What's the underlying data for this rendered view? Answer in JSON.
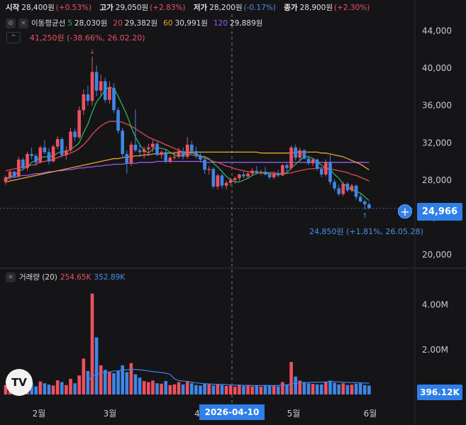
{
  "ohlc": {
    "open_label": "시작",
    "open": "28,400원",
    "open_chg": "(+0.53%)",
    "high_label": "고가",
    "high": "29,050원",
    "high_chg": "(+2.83%)",
    "low_label": "저가",
    "low": "28,200원",
    "low_chg": "(-0.17%)",
    "close_label": "종가",
    "close": "28,900원",
    "close_chg": "(+2.30%)"
  },
  "ma_legend": {
    "title": "이동평균선",
    "items": [
      {
        "period": "5",
        "value": "28,030원",
        "color": "#2bb35a"
      },
      {
        "period": "20",
        "value": "29,382원",
        "color": "#e8484e"
      },
      {
        "period": "60",
        "value": "30,991원",
        "color": "#f0a030"
      },
      {
        "period": "120",
        "value": "29,889원",
        "color": "#9b5cf0"
      }
    ]
  },
  "annotations": {
    "high": "41,250원 (-38.66%, 26.02.20)",
    "low": "24,850원 (+1.81%, 26.05.28)"
  },
  "current_price": "24,966",
  "volume_legend": {
    "title": "거래량 (20)",
    "v1": "254.65K",
    "v2": "352.89K"
  },
  "current_volume": "396.12K",
  "crosshair_date": "2026-04-10",
  "logo_text": "TV",
  "colors": {
    "up": "#ef5060",
    "down": "#3f86e6",
    "bg": "#151518"
  },
  "chart_data": {
    "type": "candlestick",
    "price_axis": {
      "ticks": [
        "20,000",
        "24,000",
        "28,000",
        "32,000",
        "36,000",
        "40,000",
        "44,000"
      ],
      "range": [
        19000,
        45800
      ]
    },
    "volume_axis": {
      "ticks": [
        "2.00M",
        "4.00M"
      ],
      "range": [
        0,
        5000000
      ]
    },
    "x_ticks": [
      "2월",
      "3월",
      "4",
      "5월",
      "6월"
    ],
    "candles": [
      [
        27800,
        28500,
        27500,
        28300
      ],
      [
        28300,
        29100,
        28000,
        28900
      ],
      [
        28900,
        29000,
        28200,
        28400
      ],
      [
        28400,
        30500,
        28300,
        30200
      ],
      [
        30200,
        30400,
        29000,
        29300
      ],
      [
        29300,
        31000,
        29000,
        30800
      ],
      [
        30800,
        31500,
        30200,
        30600
      ],
      [
        30600,
        30800,
        29500,
        29900
      ],
      [
        29900,
        31700,
        29800,
        31500
      ],
      [
        31500,
        32300,
        30800,
        31000
      ],
      [
        31000,
        31400,
        29700,
        30000
      ],
      [
        30000,
        31800,
        29900,
        31600
      ],
      [
        31600,
        32700,
        31300,
        32400
      ],
      [
        32400,
        32600,
        30400,
        30700
      ],
      [
        30700,
        31600,
        30200,
        31200
      ],
      [
        31200,
        33600,
        31000,
        33200
      ],
      [
        33200,
        33500,
        32200,
        32600
      ],
      [
        32600,
        35900,
        32400,
        35500
      ],
      [
        35500,
        37700,
        35000,
        37200
      ],
      [
        37200,
        38100,
        36000,
        36500
      ],
      [
        36500,
        41250,
        36000,
        39600
      ],
      [
        39600,
        40300,
        37000,
        37600
      ],
      [
        37600,
        39300,
        37000,
        38600
      ],
      [
        38600,
        39000,
        36300,
        36600
      ],
      [
        36600,
        38600,
        36200,
        37900
      ],
      [
        37900,
        38400,
        35200,
        35500
      ],
      [
        35500,
        35800,
        33000,
        33300
      ],
      [
        33300,
        33600,
        30500,
        30800
      ],
      [
        30800,
        31200,
        28700,
        29800
      ],
      [
        29800,
        32100,
        29500,
        31800
      ],
      [
        31800,
        35600,
        31000,
        31200
      ],
      [
        31200,
        31800,
        30500,
        31000
      ],
      [
        31000,
        31600,
        30300,
        31300
      ],
      [
        31300,
        31900,
        30600,
        31500
      ],
      [
        31500,
        32300,
        31000,
        31900
      ],
      [
        31900,
        32100,
        30600,
        30700
      ],
      [
        30700,
        31200,
        30300,
        31000
      ],
      [
        31000,
        31300,
        29800,
        30000
      ],
      [
        30000,
        30600,
        29800,
        30400
      ],
      [
        30400,
        31100,
        30200,
        30500
      ],
      [
        30500,
        31500,
        30300,
        31100
      ],
      [
        31100,
        31500,
        30200,
        30500
      ],
      [
        30500,
        32600,
        30300,
        31800
      ],
      [
        31800,
        32200,
        30800,
        31100
      ],
      [
        31100,
        31600,
        30300,
        30600
      ],
      [
        30600,
        30900,
        29900,
        30200
      ],
      [
        30200,
        30600,
        28700,
        29100
      ],
      [
        29100,
        29500,
        28600,
        29200
      ],
      [
        29200,
        29400,
        27100,
        27300
      ],
      [
        27300,
        28700,
        27000,
        28500
      ],
      [
        28500,
        28700,
        27100,
        27400
      ],
      [
        27400,
        27900,
        27000,
        27700
      ],
      [
        27700,
        28300,
        27400,
        28000
      ],
      [
        28000,
        28400,
        27600,
        28200
      ],
      [
        28200,
        28700,
        27900,
        28600
      ],
      [
        28600,
        29000,
        28200,
        28400
      ],
      [
        28400,
        28900,
        28200,
        28700
      ],
      [
        28700,
        29300,
        28500,
        29000
      ],
      [
        29000,
        29500,
        28700,
        28800
      ],
      [
        28800,
        29100,
        28500,
        28900
      ],
      [
        28900,
        29400,
        28500,
        28600
      ],
      [
        28600,
        28700,
        28100,
        28300
      ],
      [
        28300,
        28900,
        28100,
        28700
      ],
      [
        28700,
        29100,
        28300,
        28500
      ],
      [
        28500,
        29700,
        28400,
        29600
      ],
      [
        29600,
        29800,
        28900,
        29300
      ],
      [
        29300,
        31700,
        29100,
        31500
      ],
      [
        31500,
        31800,
        30100,
        30400
      ],
      [
        30400,
        31500,
        30100,
        31200
      ],
      [
        31200,
        31300,
        30200,
        30300
      ],
      [
        30300,
        30600,
        29600,
        29800
      ],
      [
        29800,
        30400,
        29500,
        30200
      ],
      [
        30200,
        30300,
        29000,
        29200
      ],
      [
        29200,
        29400,
        28300,
        28600
      ],
      [
        28600,
        30200,
        28400,
        29900
      ],
      [
        29900,
        30700,
        27500,
        27800
      ],
      [
        27800,
        28100,
        26800,
        27100
      ],
      [
        27100,
        27500,
        26300,
        26500
      ],
      [
        26500,
        27800,
        26300,
        27600
      ],
      [
        27600,
        27800,
        26700,
        26900
      ],
      [
        26900,
        27600,
        26700,
        27400
      ],
      [
        27400,
        27500,
        25900,
        26200
      ],
      [
        26200,
        26500,
        25600,
        25700
      ],
      [
        25700,
        25900,
        24850,
        25400
      ],
      [
        25400,
        25600,
        24900,
        24966
      ]
    ],
    "volumes": [
      0.42,
      0.55,
      0.38,
      0.62,
      0.45,
      0.48,
      0.52,
      0.36,
      0.58,
      0.5,
      0.44,
      0.4,
      0.63,
      0.55,
      0.42,
      0.7,
      0.5,
      0.85,
      1.6,
      1.05,
      4.5,
      2.55,
      1.3,
      1.1,
      1.0,
      0.95,
      1.05,
      1.3,
      1.0,
      1.4,
      0.9,
      0.75,
      0.6,
      0.55,
      0.62,
      0.5,
      0.48,
      0.6,
      0.42,
      0.45,
      0.55,
      0.45,
      0.6,
      0.5,
      0.42,
      0.4,
      0.48,
      0.45,
      0.4,
      0.46,
      0.42,
      0.38,
      0.4,
      0.35,
      0.42,
      0.38,
      0.41,
      0.36,
      0.4,
      0.35,
      0.42,
      0.38,
      0.4,
      0.36,
      0.55,
      0.45,
      1.45,
      0.8,
      0.62,
      0.55,
      0.5,
      0.47,
      0.45,
      0.45,
      0.55,
      0.62,
      0.52,
      0.45,
      0.5,
      0.42,
      0.44,
      0.48,
      0.5,
      0.42,
      0.4
    ],
    "ma5": [
      28000,
      28300,
      28500,
      28900,
      29200,
      29400,
      29900,
      30100,
      30400,
      30500,
      30500,
      30600,
      30900,
      31100,
      31000,
      31300,
      31600,
      32000,
      33100,
      34000,
      35300,
      36400,
      37000,
      37700,
      38000,
      37800,
      37000,
      36000,
      35000,
      33700,
      32600,
      31800,
      31200,
      30900,
      31300,
      31500,
      31400,
      31300,
      31000,
      30700,
      30600,
      30600,
      30900,
      30900,
      30800,
      30600,
      30500,
      30300,
      29800,
      29400,
      28900,
      28400,
      28000,
      27800,
      27800,
      28000,
      28200,
      28500,
      28700,
      28800,
      28700,
      28700,
      28600,
      28600,
      28700,
      28800,
      29300,
      29700,
      30100,
      30500,
      30500,
      30300,
      30000,
      29600,
      29300,
      29100,
      28600,
      28200,
      27600,
      27300,
      26900,
      26800,
      26600,
      26200,
      25800
    ],
    "ma20": [
      29000,
      29100,
      29200,
      29300,
      29400,
      29500,
      29600,
      29700,
      29900,
      30000,
      30100,
      30200,
      30400,
      30600,
      30700,
      30900,
      31100,
      31400,
      31800,
      32300,
      32900,
      33400,
      33800,
      34100,
      34300,
      34300,
      34300,
      34200,
      34000,
      33800,
      33500,
      33200,
      32900,
      32600,
      32400,
      32200,
      32000,
      31800,
      31600,
      31400,
      31200,
      31000,
      30800,
      30700,
      30600,
      30500,
      30400,
      30200,
      30000,
      29900,
      29700,
      29500,
      29400,
      29200,
      29100,
      29000,
      28900,
      28900,
      28800,
      28800,
      28800,
      28800,
      28800,
      28700,
      28700,
      28700,
      28800,
      28900,
      29000,
      29100,
      29200,
      29200,
      29300,
      29300,
      29300,
      29200,
      29100,
      29000,
      28900,
      28800,
      28600,
      28500,
      28300,
      28100,
      27900
    ],
    "ma60": [
      27800,
      27900,
      28000,
      28100,
      28200,
      28300,
      28400,
      28500,
      28600,
      28700,
      28800,
      28900,
      29000,
      29100,
      29200,
      29300,
      29400,
      29500,
      29600,
      29700,
      29800,
      29900,
      30000,
      30100,
      30200,
      30300,
      30300,
      30400,
      30500,
      30500,
      30600,
      30600,
      30700,
      30700,
      30800,
      30800,
      30800,
      30900,
      30900,
      30900,
      31000,
      31000,
      31000,
      31000,
      31000,
      31000,
      31000,
      31000,
      31000,
      31000,
      31000,
      31000,
      31000,
      31000,
      31000,
      31000,
      31000,
      31000,
      31000,
      30900,
      30900,
      30900,
      30900,
      30900,
      30900,
      30900,
      30900,
      31000,
      31000,
      31000,
      31000,
      31000,
      31000,
      30900,
      30900,
      30800,
      30700,
      30600,
      30500,
      30300,
      30100,
      29900,
      29700,
      29400,
      29100
    ],
    "ma120": [
      28200,
      28300,
      28300,
      28400,
      28500,
      28500,
      28600,
      28700,
      28700,
      28800,
      28900,
      28900,
      29000,
      29000,
      29100,
      29100,
      29200,
      29300,
      29300,
      29400,
      29400,
      29500,
      29500,
      29600,
      29600,
      29700,
      29700,
      29700,
      29800,
      29800,
      29800,
      29900,
      29900,
      29900,
      29900,
      30000,
      30000,
      30000,
      30000,
      30000,
      30000,
      30000,
      30000,
      30000,
      30000,
      30000,
      29900,
      29900,
      29900,
      29900,
      29900,
      29900,
      29900,
      29900,
      29900,
      29900,
      29900,
      29900,
      29900,
      29900,
      29900,
      29900,
      29900,
      29900,
      29900,
      29900,
      29900,
      29900,
      29900,
      29900,
      29900,
      29900,
      29900,
      29900,
      29900,
      29900,
      29900,
      29900,
      29900,
      29900,
      29900,
      29900,
      29900,
      29900,
      29889
    ],
    "vol_ma": [
      0.0,
      0.0,
      0.0,
      0.0,
      0.0,
      0.0,
      0.0,
      0.0,
      0.0,
      0.0,
      0.0,
      0.0,
      0.0,
      0.0,
      0.0,
      0.0,
      0.0,
      0.0,
      0.0,
      0.6,
      0.8,
      0.9,
      0.95,
      1.0,
      1.0,
      1.05,
      1.05,
      1.1,
      1.1,
      1.12,
      1.12,
      1.1,
      1.08,
      1.05,
      1.02,
      1.0,
      0.98,
      0.95,
      0.9,
      0.7,
      0.62,
      0.6,
      0.58,
      0.55,
      0.52,
      0.5,
      0.48,
      0.47,
      0.46,
      0.45,
      0.45,
      0.44,
      0.43,
      0.42,
      0.42,
      0.41,
      0.41,
      0.4,
      0.4,
      0.4,
      0.4,
      0.4,
      0.4,
      0.4,
      0.42,
      0.43,
      0.47,
      0.5,
      0.52,
      0.53,
      0.54,
      0.55,
      0.55,
      0.55,
      0.56,
      0.57,
      0.57,
      0.56,
      0.55,
      0.54,
      0.53,
      0.53,
      0.52,
      0.51,
      0.5
    ]
  }
}
